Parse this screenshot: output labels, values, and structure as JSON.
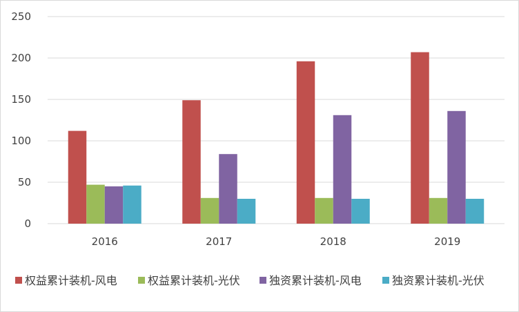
{
  "chart_data": {
    "type": "bar",
    "categories": [
      "2016",
      "2017",
      "2018",
      "2019"
    ],
    "series": [
      {
        "name": "权益累计装机-风电",
        "values": [
          112,
          149,
          196,
          207
        ],
        "color": "#c0504d"
      },
      {
        "name": "权益累计装机-光伏",
        "values": [
          47,
          31,
          31,
          31
        ],
        "color": "#9bbb59"
      },
      {
        "name": "独资累计装机-风电",
        "values": [
          45,
          84,
          131,
          136
        ],
        "color": "#8064a2"
      },
      {
        "name": "独资累计装机-光伏",
        "values": [
          46,
          30,
          30,
          30
        ],
        "color": "#4bacc6"
      }
    ],
    "ylim": [
      0,
      250
    ],
    "yticks": [
      "0",
      "50",
      "100",
      "150",
      "200",
      "250"
    ],
    "ytick_values": [
      0,
      50,
      100,
      150,
      200,
      250
    ],
    "grid": true,
    "legend_position": "bottom",
    "colors": {
      "grid": "#d9d9d9",
      "text": "#404040",
      "border": "#d9d9d9"
    }
  }
}
